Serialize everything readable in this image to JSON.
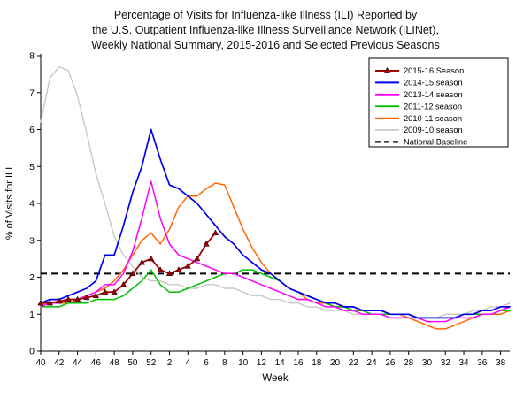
{
  "title": {
    "line1": "Percentage of Visits for Influenza-like Illness (ILI) Reported by",
    "line2": "the U.S. Outpatient Influenza-like Illness Surveillance Network (ILINet),",
    "line3": "Weekly National Summary, 2015-2016 and Selected Previous Seasons"
  },
  "chart_data": {
    "type": "line",
    "xlabel": "Week",
    "ylabel": "% of Visits for ILI",
    "ylim": [
      0,
      8
    ],
    "yticks": [
      0,
      1,
      2,
      3,
      4,
      5,
      6,
      7,
      8
    ],
    "xtick_labels": [
      "40",
      "42",
      "44",
      "46",
      "48",
      "50",
      "52",
      "2",
      "4",
      "6",
      "8",
      "10",
      "12",
      "14",
      "16",
      "18",
      "20",
      "22",
      "24",
      "26",
      "28",
      "30",
      "32",
      "34",
      "36",
      "38"
    ],
    "x_weeks": [
      40,
      41,
      42,
      43,
      44,
      45,
      46,
      47,
      48,
      49,
      50,
      51,
      52,
      1,
      2,
      3,
      4,
      5,
      6,
      7,
      8,
      9,
      10,
      11,
      12,
      13,
      14,
      15,
      16,
      17,
      18,
      19,
      20,
      21,
      22,
      23,
      24,
      25,
      26,
      27,
      28,
      29,
      30,
      31,
      32,
      33,
      34,
      35,
      36,
      37,
      38,
      39
    ],
    "legend_position": "top-right",
    "grid": false,
    "baseline": {
      "label": "National Baseline",
      "value": 2.1,
      "color": "#000000",
      "dashed": true
    },
    "series": [
      {
        "name": "2015-16 Season",
        "color": "#A00000",
        "marker": "triangle",
        "width": 1.8,
        "values": [
          1.3,
          1.3,
          1.35,
          1.4,
          1.4,
          1.45,
          1.5,
          1.6,
          1.6,
          1.8,
          2.1,
          2.4,
          2.5,
          2.2,
          2.1,
          2.2,
          2.3,
          2.5,
          2.9,
          3.2
        ]
      },
      {
        "name": "2014-15 season",
        "color": "#0000EE",
        "width": 1.7,
        "values": [
          1.3,
          1.4,
          1.4,
          1.5,
          1.6,
          1.7,
          1.9,
          2.6,
          2.6,
          3.4,
          4.3,
          5.0,
          6.0,
          5.2,
          4.5,
          4.4,
          4.2,
          4.0,
          3.7,
          3.4,
          3.1,
          2.9,
          2.6,
          2.4,
          2.2,
          2.1,
          1.9,
          1.7,
          1.6,
          1.5,
          1.4,
          1.3,
          1.3,
          1.2,
          1.2,
          1.1,
          1.1,
          1.1,
          1.0,
          1.0,
          1.0,
          0.9,
          0.9,
          0.9,
          0.9,
          0.9,
          1.0,
          1.0,
          1.1,
          1.1,
          1.2,
          1.2
        ]
      },
      {
        "name": "2013-14 season",
        "color": "#FF00FF",
        "width": 1.5,
        "values": [
          1.2,
          1.3,
          1.3,
          1.4,
          1.4,
          1.5,
          1.6,
          1.8,
          1.8,
          2.1,
          2.7,
          3.6,
          4.6,
          3.6,
          2.9,
          2.6,
          2.5,
          2.4,
          2.3,
          2.2,
          2.1,
          2.1,
          2.0,
          1.9,
          1.8,
          1.7,
          1.6,
          1.5,
          1.4,
          1.4,
          1.3,
          1.2,
          1.2,
          1.1,
          1.1,
          1.0,
          1.0,
          1.0,
          0.9,
          0.9,
          0.9,
          0.9,
          0.8,
          0.8,
          0.8,
          0.9,
          0.9,
          0.9,
          1.0,
          1.0,
          1.1,
          1.2
        ]
      },
      {
        "name": "2011-12 season",
        "color": "#00C000",
        "width": 1.5,
        "values": [
          1.2,
          1.2,
          1.2,
          1.3,
          1.3,
          1.3,
          1.4,
          1.4,
          1.4,
          1.5,
          1.7,
          1.9,
          2.2,
          1.8,
          1.6,
          1.6,
          1.7,
          1.8,
          1.9,
          2.0,
          2.1,
          2.1,
          2.2,
          2.2,
          2.1,
          2.0,
          1.9,
          1.7,
          1.6,
          1.5,
          1.4,
          1.3,
          1.2,
          1.2,
          1.1,
          1.1,
          1.0,
          1.0,
          1.0,
          1.0,
          1.0,
          0.9,
          0.9,
          0.9,
          0.9,
          0.9,
          1.0,
          1.0,
          1.0,
          1.0,
          1.1,
          1.1
        ]
      },
      {
        "name": "2010-11 season",
        "color": "#FF6600",
        "width": 1.5,
        "values": [
          1.2,
          1.3,
          1.3,
          1.3,
          1.4,
          1.5,
          1.6,
          1.7,
          1.9,
          2.2,
          2.6,
          3.0,
          3.2,
          2.9,
          3.3,
          3.9,
          4.2,
          4.2,
          4.4,
          4.55,
          4.5,
          3.9,
          3.3,
          2.8,
          2.4,
          2.1,
          1.9,
          1.7,
          1.6,
          1.4,
          1.3,
          1.3,
          1.2,
          1.2,
          1.1,
          1.1,
          1.1,
          1.1,
          1.0,
          1.0,
          0.9,
          0.8,
          0.7,
          0.6,
          0.6,
          0.7,
          0.8,
          0.9,
          1.0,
          1.0,
          1.0,
          1.1
        ]
      },
      {
        "name": "2009-10 season",
        "color": "#C8C8C8",
        "width": 1.4,
        "values": [
          6.2,
          7.4,
          7.7,
          7.6,
          6.9,
          5.9,
          4.8,
          4.0,
          3.1,
          2.6,
          2.3,
          2.0,
          1.9,
          1.9,
          1.8,
          1.8,
          1.7,
          1.7,
          1.8,
          1.8,
          1.7,
          1.7,
          1.6,
          1.5,
          1.5,
          1.4,
          1.4,
          1.3,
          1.3,
          1.2,
          1.2,
          1.1,
          1.1,
          1.1,
          1.0,
          1.0,
          1.0,
          1.0,
          0.9,
          0.9,
          0.9,
          0.9,
          0.9,
          0.9,
          1.0,
          1.0,
          1.0,
          1.1,
          1.1,
          1.2,
          1.2,
          1.3
        ]
      }
    ]
  }
}
